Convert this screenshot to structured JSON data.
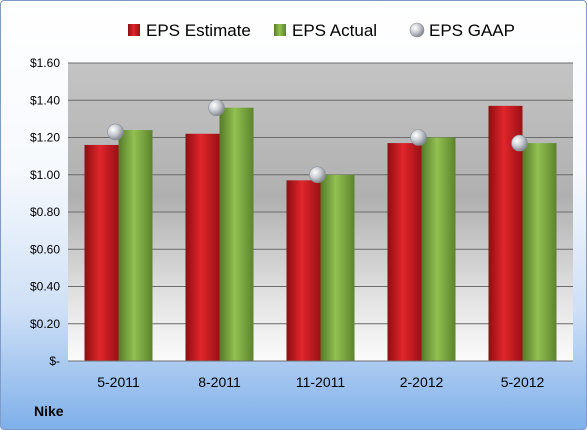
{
  "company": "Nike",
  "chart_data": {
    "type": "bar",
    "categories": [
      "5-2011",
      "8-2011",
      "11-2011",
      "2-2012",
      "5-2012"
    ],
    "series": [
      {
        "name": "EPS Estimate",
        "kind": "bar",
        "color": "#c0141b",
        "values": [
          1.16,
          1.22,
          0.97,
          1.17,
          1.37
        ]
      },
      {
        "name": "EPS Actual",
        "kind": "bar",
        "color": "#77a83c",
        "values": [
          1.24,
          1.36,
          1.0,
          1.2,
          1.17
        ]
      },
      {
        "name": "EPS GAAP",
        "kind": "marker",
        "color": "#b8bcc2",
        "values": [
          1.23,
          1.36,
          1.0,
          1.2,
          1.17
        ]
      }
    ],
    "yticks": [
      "$-",
      "$0.20",
      "$0.40",
      "$0.60",
      "$0.80",
      "$1.00",
      "$1.20",
      "$1.40",
      "$1.60"
    ],
    "ylim": [
      0,
      1.6
    ],
    "grid": true,
    "legend_position": "top"
  }
}
